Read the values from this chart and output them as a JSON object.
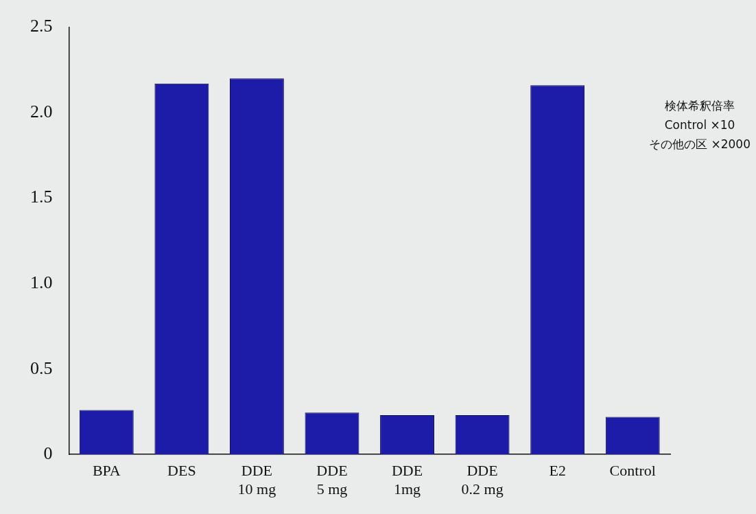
{
  "chart_data": {
    "type": "bar",
    "categories": [
      "BPA",
      "DES",
      "DDE\n10 mg",
      "DDE\n5 mg",
      "DDE\n1mg",
      "DDE\n0.2 mg",
      "E2",
      "Control"
    ],
    "values": [
      0.26,
      2.17,
      2.2,
      0.245,
      0.23,
      0.23,
      2.16,
      0.22
    ],
    "color": "#1c1ca8",
    "ylim": [
      0,
      2.5
    ],
    "yticks": [
      0,
      0.5,
      {
        "value": 1,
        "label": "1.0"
      },
      1.5,
      {
        "value": 2,
        "label": "2.0"
      },
      2.5
    ],
    "grid": false,
    "legend": false,
    "annotations": [
      "検体希釈倍率\nControl ×10\nその他の区 ×2000"
    ]
  }
}
